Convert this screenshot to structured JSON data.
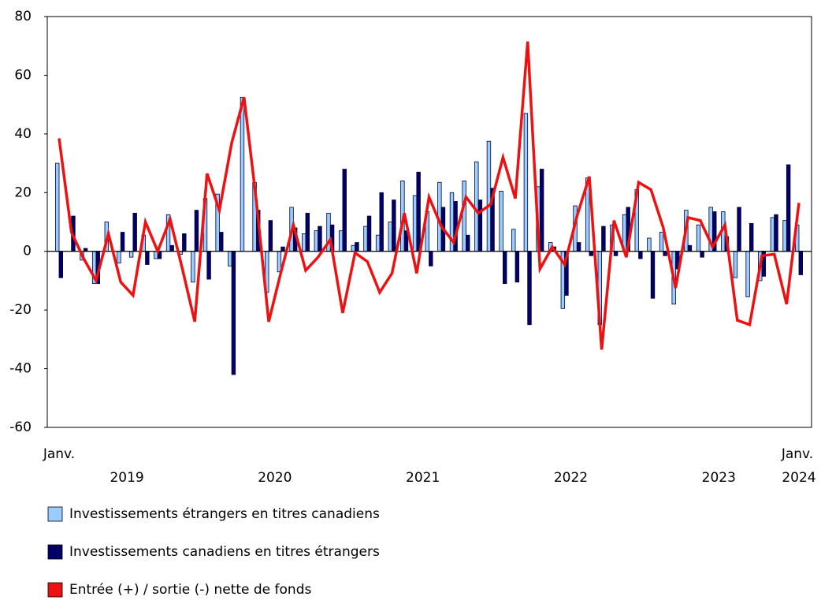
{
  "chart_data": {
    "type": "bar_line",
    "categories": [
      "Janv.",
      null,
      null,
      null,
      null,
      null,
      null,
      null,
      null,
      null,
      null,
      null,
      null,
      null,
      null,
      null,
      null,
      null,
      null,
      null,
      null,
      null,
      null,
      null,
      null,
      null,
      null,
      null,
      null,
      null,
      null,
      null,
      null,
      null,
      null,
      null,
      null,
      null,
      null,
      null,
      null,
      null,
      null,
      null,
      null,
      null,
      null,
      null,
      null,
      null,
      null,
      null,
      null,
      null,
      null,
      null,
      null,
      null,
      null,
      null,
      "Janv."
    ],
    "years": [
      "2019",
      "2020",
      "2021",
      "2022",
      "2023",
      "2024"
    ],
    "series": [
      {
        "name": "Investissements étrangers en titres canadiens",
        "type": "bar",
        "color": "#99ccff",
        "values": [
          30,
          0,
          -3,
          -11,
          10,
          -4,
          -2,
          5.5,
          -2.5,
          12.5,
          -1,
          -10.5,
          18,
          19.5,
          -5,
          52.5,
          23.5,
          -14,
          -7,
          15,
          6,
          7,
          13,
          7,
          2,
          8.5,
          5.5,
          10,
          24,
          19,
          13.5,
          23.5,
          20,
          24,
          30.5,
          37.5,
          20.5,
          7.5,
          47,
          22,
          3,
          -19.5,
          15.5,
          25,
          -25,
          9,
          12.5,
          21,
          4.5,
          6.5,
          -18,
          14,
          9,
          15,
          13.5,
          -9,
          -15.5,
          -10,
          11.5,
          10.5,
          9
        ]
      },
      {
        "name": "Investissements canadiens en titres étrangers",
        "type": "bar",
        "color": "#000066",
        "values": [
          -9,
          12,
          1,
          -11,
          0,
          6.5,
          13,
          -4.5,
          -2.5,
          2,
          6,
          14,
          -9.5,
          6.5,
          -42,
          0,
          14,
          10.5,
          1.5,
          8,
          13,
          8.5,
          9,
          28,
          3,
          12,
          20,
          17.5,
          7,
          27,
          -5,
          15,
          17,
          5.5,
          17.5,
          21.5,
          -11,
          -10.5,
          -25,
          28,
          1.5,
          -15,
          3,
          -1.5,
          8.5,
          -1.5,
          15,
          -2.5,
          -16,
          -1.5,
          -6,
          2,
          -2,
          13.5,
          5,
          15,
          9.5,
          -8.5,
          12.5,
          29.5,
          -8
        ]
      },
      {
        "name": "Entrée (+) / sortie (-) nette de fonds",
        "type": "line",
        "color": "#ee1111",
        "values": [
          38.5,
          6.5,
          -2.5,
          -10,
          6,
          -10.5,
          -15,
          10,
          0,
          11,
          -6,
          -24,
          26.5,
          14,
          37,
          52.5,
          17,
          -24,
          -7,
          9,
          -6.5,
          -2,
          4,
          -21,
          -0.5,
          -3.5,
          -14,
          -7.5,
          13,
          -7.5,
          18.5,
          8.5,
          3,
          18.5,
          13,
          16,
          32,
          18,
          71.5,
          -6,
          1.5,
          -4.5,
          12,
          25.5,
          -33.5,
          10.5,
          -2,
          23.5,
          21,
          8,
          -12.5,
          11.5,
          10.5,
          1.5,
          9,
          -23.5,
          -25,
          -1.5,
          -1,
          -18,
          16.5
        ]
      }
    ],
    "ylim": [
      -60,
      80
    ],
    "yticks": [
      -60,
      -40,
      -20,
      0,
      20,
      40,
      60,
      80
    ],
    "grid": false
  }
}
